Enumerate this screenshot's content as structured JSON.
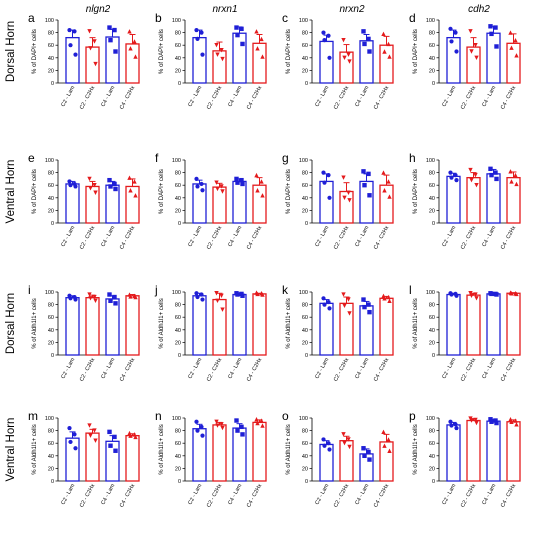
{
  "colors": {
    "lam": "#1f1fd6",
    "c2hx": "#e41a1c",
    "axis": "#000000"
  },
  "genes": [
    "nlgn2",
    "nrxn1",
    "nrxn2",
    "cdh2"
  ],
  "rows": [
    {
      "label": "Dorsal Horn",
      "ylabel": "% of DAPI+ cells",
      "letters": [
        "a",
        "b",
        "c",
        "d"
      ]
    },
    {
      "label": "Ventral Horn",
      "ylabel": "% of DAPI+ cells",
      "letters": [
        "e",
        "f",
        "g",
        "h"
      ]
    },
    {
      "label": "Dorsal Horn",
      "ylabel": "% of Aldh1l1+ cells",
      "letters": [
        "i",
        "j",
        "k",
        "l"
      ]
    },
    {
      "label": "Ventral Horn",
      "ylabel": "% of Aldh1l1+ cells",
      "letters": [
        "m",
        "n",
        "o",
        "p"
      ]
    }
  ],
  "chart_data": [
    {
      "panel": "a",
      "type": "bar",
      "ylabel": "% of DAPI+ cells",
      "ylim": [
        0,
        100
      ],
      "yticks": [
        0,
        20,
        40,
        60,
        80,
        100
      ],
      "categories": [
        "C2 - Lam",
        "C2 - C2Hx",
        "C4 - Lam",
        "C4 - C2Hx"
      ],
      "values": [
        72,
        57,
        73,
        62
      ],
      "errors": [
        12,
        15,
        12,
        15
      ],
      "points": [
        [
          84,
          82,
          60,
          45
        ],
        [
          82,
          66,
          55,
          30
        ],
        [
          88,
          84,
          68,
          50
        ],
        [
          82,
          66,
          55,
          42
        ]
      ]
    },
    {
      "panel": "b",
      "type": "bar",
      "ylabel": "% of DAPI+ cells",
      "ylim": [
        0,
        100
      ],
      "yticks": [
        0,
        20,
        40,
        60,
        80,
        100
      ],
      "categories": [
        "C2 - Lam",
        "C2 - C2Hx",
        "C4 - Lam",
        "C4 - C2Hx"
      ],
      "values": [
        72,
        51,
        79,
        63
      ],
      "errors": [
        12,
        14,
        10,
        14
      ],
      "points": [
        [
          84,
          80,
          70,
          45
        ],
        [
          60,
          52,
          45,
          38
        ],
        [
          88,
          86,
          76,
          62
        ],
        [
          82,
          70,
          55,
          42
        ]
      ]
    },
    {
      "panel": "c",
      "type": "bar",
      "ylabel": "% of DAPI+ cells",
      "ylim": [
        0,
        100
      ],
      "yticks": [
        0,
        20,
        40,
        60,
        80,
        100
      ],
      "categories": [
        "C2 - Lam",
        "C2 - C2Hx",
        "C4 - Lam",
        "C4 - C2Hx"
      ],
      "values": [
        66,
        49,
        67,
        60
      ],
      "errors": [
        10,
        12,
        10,
        14
      ],
      "points": [
        [
          80,
          75,
          68,
          40
        ],
        [
          68,
          45,
          40,
          34
        ],
        [
          82,
          70,
          62,
          50
        ],
        [
          78,
          62,
          50,
          42
        ]
      ]
    },
    {
      "panel": "d",
      "type": "bar",
      "ylabel": "% of DAPI+ cells",
      "ylim": [
        0,
        100
      ],
      "yticks": [
        0,
        20,
        40,
        60,
        80,
        100
      ],
      "categories": [
        "C2 - Lam",
        "C2 - C2Hx",
        "C4 - Lam",
        "C4 - C2Hx"
      ],
      "values": [
        72,
        57,
        79,
        63
      ],
      "errors": [
        12,
        15,
        11,
        15
      ],
      "points": [
        [
          86,
          80,
          66,
          50
        ],
        [
          82,
          60,
          50,
          40
        ],
        [
          90,
          88,
          78,
          58
        ],
        [
          80,
          68,
          56,
          44
        ]
      ]
    },
    {
      "panel": "e",
      "type": "bar",
      "ylabel": "% of DAPI+ cells",
      "ylim": [
        0,
        100
      ],
      "yticks": [
        0,
        20,
        40,
        60,
        80,
        100
      ],
      "categories": [
        "C2 - Lam",
        "C2 - C2Hx",
        "C4 - Lam",
        "C4 - C2Hx"
      ],
      "values": [
        62,
        58,
        60,
        58
      ],
      "errors": [
        4,
        8,
        6,
        12
      ],
      "points": [
        [
          66,
          62,
          60,
          58
        ],
        [
          70,
          60,
          55,
          48
        ],
        [
          68,
          62,
          58,
          54
        ],
        [
          72,
          66,
          52,
          44
        ]
      ]
    },
    {
      "panel": "f",
      "type": "bar",
      "ylabel": "% of DAPI+ cells",
      "ylim": [
        0,
        100
      ],
      "yticks": [
        0,
        20,
        40,
        60,
        80,
        100
      ],
      "categories": [
        "C2 - Lam",
        "C2 - C2Hx",
        "C4 - Lam",
        "C4 - C2Hx"
      ],
      "values": [
        62,
        57,
        66,
        60
      ],
      "errors": [
        6,
        6,
        4,
        12
      ],
      "points": [
        [
          70,
          62,
          58,
          52
        ],
        [
          64,
          58,
          54,
          50
        ],
        [
          70,
          68,
          64,
          62
        ],
        [
          76,
          66,
          52,
          44
        ]
      ]
    },
    {
      "panel": "g",
      "type": "bar",
      "ylabel": "% of DAPI+ cells",
      "ylim": [
        0,
        100
      ],
      "yticks": [
        0,
        20,
        40,
        60,
        80,
        100
      ],
      "categories": [
        "C2 - Lam",
        "C2 - C2Hx",
        "C4 - Lam",
        "C4 - C2Hx"
      ],
      "values": [
        66,
        50,
        66,
        60
      ],
      "errors": [
        12,
        14,
        12,
        16
      ],
      "points": [
        [
          80,
          76,
          64,
          40
        ],
        [
          72,
          48,
          40,
          36
        ],
        [
          82,
          78,
          60,
          44
        ],
        [
          80,
          66,
          52,
          42
        ]
      ]
    },
    {
      "panel": "h",
      "type": "bar",
      "ylabel": "% of DAPI+ cells",
      "ylim": [
        0,
        100
      ],
      "yticks": [
        0,
        20,
        40,
        60,
        80,
        100
      ],
      "categories": [
        "C2 - Lam",
        "C2 - C2Hx",
        "C4 - Lam",
        "C4 - C2Hx"
      ],
      "values": [
        74,
        72,
        78,
        72
      ],
      "errors": [
        5,
        8,
        7,
        9
      ],
      "points": [
        [
          80,
          76,
          72,
          68
        ],
        [
          84,
          76,
          68,
          60
        ],
        [
          86,
          80,
          76,
          70
        ],
        [
          82,
          76,
          66,
          62
        ]
      ]
    },
    {
      "panel": "i",
      "type": "bar",
      "ylabel": "% of Aldh1l1+ cells",
      "ylim": [
        0,
        100
      ],
      "yticks": [
        0,
        20,
        40,
        60,
        80,
        100
      ],
      "categories": [
        "C2 - Lam",
        "C2 - C2Hx",
        "C4 - Lam",
        "C4 - C2Hx"
      ],
      "values": [
        91,
        91,
        89,
        94
      ],
      "errors": [
        3,
        4,
        5,
        2
      ],
      "points": [
        [
          94,
          92,
          90,
          88
        ],
        [
          96,
          92,
          90,
          86
        ],
        [
          96,
          92,
          86,
          82
        ],
        [
          96,
          94,
          93,
          92
        ]
      ]
    },
    {
      "panel": "j",
      "type": "bar",
      "ylabel": "% of Aldh1l1+ cells",
      "ylim": [
        0,
        100
      ],
      "yticks": [
        0,
        20,
        40,
        60,
        80,
        100
      ],
      "categories": [
        "C2 - Lam",
        "C2 - C2Hx",
        "C4 - Lam",
        "C4 - C2Hx"
      ],
      "values": [
        94,
        88,
        96,
        97
      ],
      "errors": [
        4,
        10,
        2,
        1
      ],
      "points": [
        [
          98,
          96,
          92,
          88
        ],
        [
          98,
          94,
          86,
          72
        ],
        [
          98,
          97,
          96,
          94
        ],
        [
          99,
          98,
          97,
          96
        ]
      ]
    },
    {
      "panel": "k",
      "type": "bar",
      "ylabel": "% of Aldh1l1+ cells",
      "ylim": [
        0,
        100
      ],
      "yticks": [
        0,
        20,
        40,
        60,
        80,
        100
      ],
      "categories": [
        "C2 - Lam",
        "C2 - C2Hx",
        "C4 - Lam",
        "C4 - C2Hx"
      ],
      "values": [
        82,
        82,
        78,
        90
      ],
      "errors": [
        6,
        10,
        7,
        3
      ],
      "points": [
        [
          90,
          84,
          80,
          74
        ],
        [
          96,
          88,
          78,
          66
        ],
        [
          88,
          80,
          76,
          68
        ],
        [
          94,
          92,
          90,
          86
        ]
      ]
    },
    {
      "panel": "l",
      "type": "bar",
      "ylabel": "% of Aldh1l1+ cells",
      "ylim": [
        0,
        100
      ],
      "yticks": [
        0,
        20,
        40,
        60,
        80,
        100
      ],
      "categories": [
        "C2 - Lam",
        "C2 - C2Hx",
        "C4 - Lam",
        "C4 - C2Hx"
      ],
      "values": [
        96,
        95,
        97,
        98
      ],
      "errors": [
        2,
        3,
        1,
        1
      ],
      "points": [
        [
          98,
          97,
          96,
          94
        ],
        [
          98,
          96,
          94,
          90
        ],
        [
          98,
          97,
          97,
          96
        ],
        [
          99,
          98,
          98,
          97
        ]
      ]
    },
    {
      "panel": "m",
      "type": "bar",
      "ylabel": "% of Aldh1l1+ cells",
      "ylim": [
        0,
        100
      ],
      "yticks": [
        0,
        20,
        40,
        60,
        80,
        100
      ],
      "categories": [
        "C2 - Lam",
        "C2 - C2Hx",
        "C4 - Lam",
        "C4 - C2Hx"
      ],
      "values": [
        68,
        76,
        63,
        72
      ],
      "errors": [
        10,
        6,
        9,
        3
      ],
      "points": [
        [
          84,
          74,
          62,
          52
        ],
        [
          88,
          80,
          72,
          64
        ],
        [
          78,
          70,
          56,
          48
        ],
        [
          76,
          74,
          72,
          70
        ]
      ]
    },
    {
      "panel": "n",
      "type": "bar",
      "ylabel": "% of Aldh1l1+ cells",
      "ylim": [
        0,
        100
      ],
      "yticks": [
        0,
        20,
        40,
        60,
        80,
        100
      ],
      "categories": [
        "C2 - Lam",
        "C2 - C2Hx",
        "C4 - Lam",
        "C4 - C2Hx"
      ],
      "values": [
        83,
        89,
        84,
        93
      ],
      "errors": [
        7,
        4,
        7,
        4
      ],
      "points": [
        [
          94,
          86,
          80,
          72
        ],
        [
          94,
          90,
          88,
          84
        ],
        [
          96,
          86,
          80,
          74
        ],
        [
          98,
          96,
          92,
          88
        ]
      ]
    },
    {
      "panel": "o",
      "type": "bar",
      "ylabel": "% of Aldh1l1+ cells",
      "ylim": [
        0,
        100
      ],
      "yticks": [
        0,
        20,
        40,
        60,
        80,
        100
      ],
      "categories": [
        "C2 - Lam",
        "C2 - C2Hx",
        "C4 - Lam",
        "C4 - C2Hx"
      ],
      "values": [
        58,
        64,
        43,
        62
      ],
      "errors": [
        6,
        7,
        8,
        12
      ],
      "points": [
        [
          66,
          60,
          56,
          50
        ],
        [
          74,
          66,
          60,
          54
        ],
        [
          52,
          46,
          40,
          34
        ],
        [
          78,
          66,
          56,
          48
        ]
      ]
    },
    {
      "panel": "p",
      "type": "bar",
      "ylabel": "% of Aldh1l1+ cells",
      "ylim": [
        0,
        100
      ],
      "yticks": [
        0,
        20,
        40,
        60,
        80,
        100
      ],
      "categories": [
        "C2 - Lam",
        "C2 - C2Hx",
        "C4 - Lam",
        "C4 - C2Hx"
      ],
      "values": [
        89,
        96,
        95,
        94
      ],
      "errors": [
        4,
        3,
        3,
        3
      ],
      "points": [
        [
          94,
          90,
          88,
          84
        ],
        [
          99,
          97,
          96,
          92
        ],
        [
          98,
          96,
          94,
          92
        ],
        [
          98,
          96,
          94,
          90
        ]
      ]
    }
  ]
}
